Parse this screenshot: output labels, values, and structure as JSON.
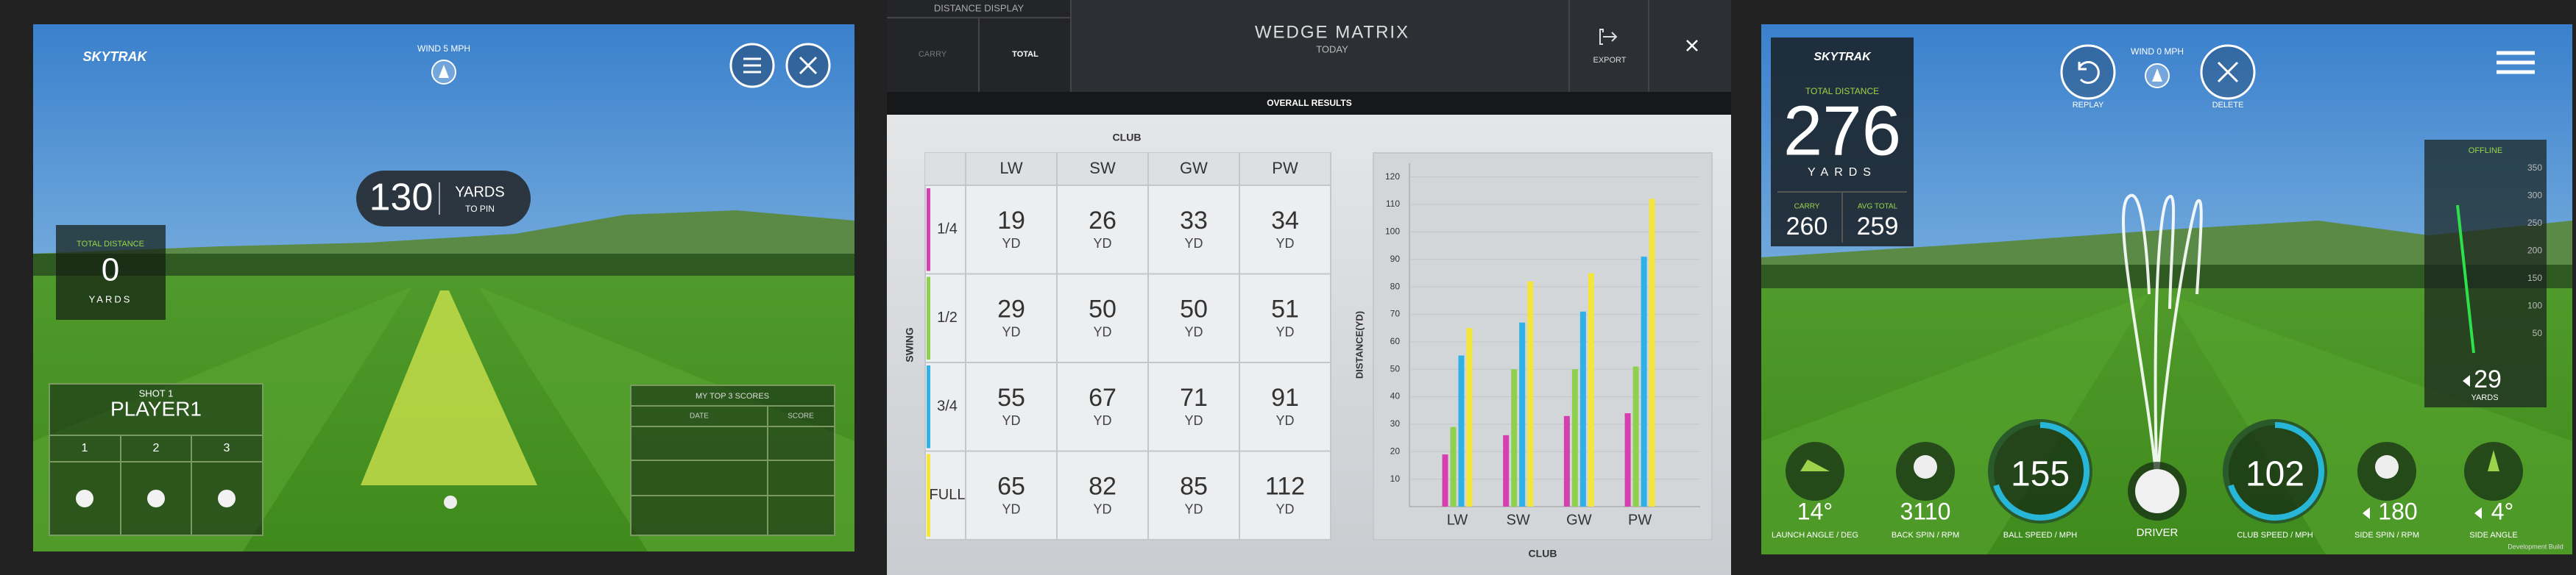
{
  "left": {
    "logo": "SKYTRAK",
    "wind": "WIND 5 MPH",
    "distance_to_pin": 130,
    "distance_unit": "YARDS",
    "distance_sub": "TO PIN",
    "total_distance_label": "TOTAL DISTANCE",
    "total_distance": 0,
    "total_unit": "YARDS",
    "shot": "SHOT 1",
    "player": "PLAYER1",
    "shot_numbers": [
      1,
      2,
      3
    ],
    "scores_title": "MY TOP 3 SCORES",
    "scores_headers": [
      "DATE",
      "SCORE"
    ]
  },
  "matrix": {
    "distance_display": "DISTANCE DISPLAY",
    "options": [
      "CARRY",
      "TOTAL"
    ],
    "title": "WEDGE MATRIX",
    "subtitle": "TODAY",
    "export": "EXPORT",
    "overall": "OVERALL RESULTS",
    "club_label": "CLUB",
    "swing_label": "SWING",
    "clubs": [
      "LW",
      "SW",
      "GW",
      "PW"
    ],
    "swings": [
      "1/4",
      "1/2",
      "3/4",
      "FULL"
    ],
    "unit": "YD",
    "values": [
      [
        19,
        26,
        33,
        34
      ],
      [
        29,
        50,
        50,
        51
      ],
      [
        55,
        67,
        71,
        91
      ],
      [
        65,
        82,
        85,
        112
      ]
    ]
  },
  "chart_data": {
    "type": "bar",
    "ylabel": "DISTANCE(YD)",
    "xlabel": "CLUB",
    "categories": [
      "LW",
      "SW",
      "GW",
      "PW"
    ],
    "series": [
      {
        "color": "#d63fb0",
        "values": [
          19,
          26,
          33,
          34
        ]
      },
      {
        "color": "#8fd14f",
        "values": [
          29,
          50,
          50,
          51
        ]
      },
      {
        "color": "#2fb1e8",
        "values": [
          55,
          67,
          71,
          91
        ]
      },
      {
        "color": "#f3e53a",
        "values": [
          65,
          82,
          85,
          112
        ]
      }
    ],
    "ylim": [
      0,
      125
    ],
    "yticks": [
      10,
      20,
      30,
      40,
      50,
      60,
      70,
      80,
      90,
      100,
      110,
      120
    ],
    "grid": true
  },
  "right": {
    "logo": "SKYTRAK",
    "total_label": "TOTAL DISTANCE",
    "total": 276,
    "unit": "YARDS",
    "carry_label": "CARRY",
    "carry": 260,
    "avg_label": "AVG TOTAL",
    "avg": 259,
    "replay": "REPLAY",
    "wind": "WIND 0 MPH",
    "delete": "DELETE",
    "offline_label": "OFFLINE",
    "offline_ticks": [
      350,
      300,
      250,
      200,
      150,
      100,
      50
    ],
    "offline": 29,
    "offline_unit": "YARDS",
    "metrics": [
      {
        "value": "14°",
        "label": "LAUNCH ANGLE / DEG"
      },
      {
        "value": "3110",
        "label": "BACK SPIN / RPM"
      },
      {
        "value": "155",
        "label": "BALL SPEED / MPH"
      },
      {
        "label": "DRIVER"
      },
      {
        "value": "102",
        "label": "CLUB SPEED / MPH"
      },
      {
        "value": "180",
        "label": "SIDE SPIN / RPM"
      },
      {
        "value": "4°",
        "label": "SIDE ANGLE"
      }
    ],
    "footer": "Development Build"
  }
}
